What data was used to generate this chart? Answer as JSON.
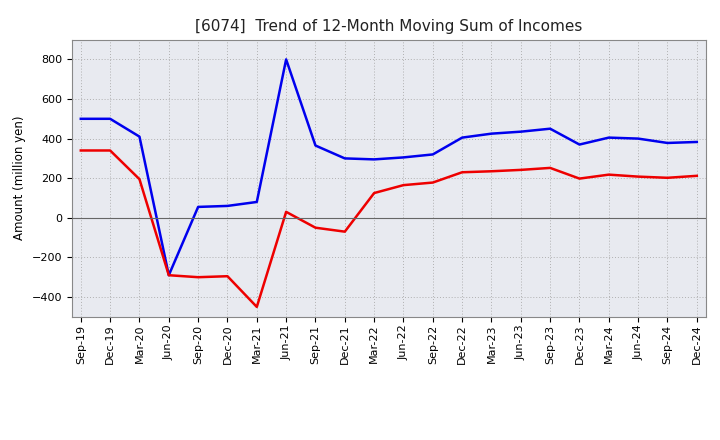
{
  "title": "[6074]  Trend of 12-Month Moving Sum of Incomes",
  "ylabel": "Amount (million yen)",
  "background_color": "#ffffff",
  "plot_bg_color": "#e8eaf0",
  "grid_color": "#aaaaaa",
  "x_labels": [
    "Sep-19",
    "Dec-19",
    "Mar-20",
    "Jun-20",
    "Sep-20",
    "Dec-20",
    "Mar-21",
    "Jun-21",
    "Sep-21",
    "Dec-21",
    "Mar-22",
    "Jun-22",
    "Sep-22",
    "Dec-22",
    "Mar-23",
    "Jun-23",
    "Sep-23",
    "Dec-23",
    "Mar-24",
    "Jun-24",
    "Sep-24",
    "Dec-24"
  ],
  "ordinary_income": [
    500,
    500,
    410,
    -290,
    55,
    60,
    80,
    800,
    365,
    300,
    295,
    305,
    320,
    405,
    425,
    435,
    450,
    370,
    405,
    400,
    378,
    383
  ],
  "net_income": [
    340,
    340,
    195,
    -290,
    -300,
    -295,
    -450,
    30,
    -50,
    -70,
    125,
    165,
    178,
    230,
    235,
    242,
    252,
    198,
    218,
    208,
    202,
    212
  ],
  "ordinary_color": "#0000ee",
  "net_color": "#ee0000",
  "ylim": [
    -500,
    900
  ],
  "yticks": [
    -400,
    -200,
    0,
    200,
    400,
    600,
    800
  ],
  "line_width": 1.8,
  "title_fontsize": 11,
  "axis_fontsize": 8.5,
  "tick_fontsize": 8,
  "legend_fontsize": 9
}
